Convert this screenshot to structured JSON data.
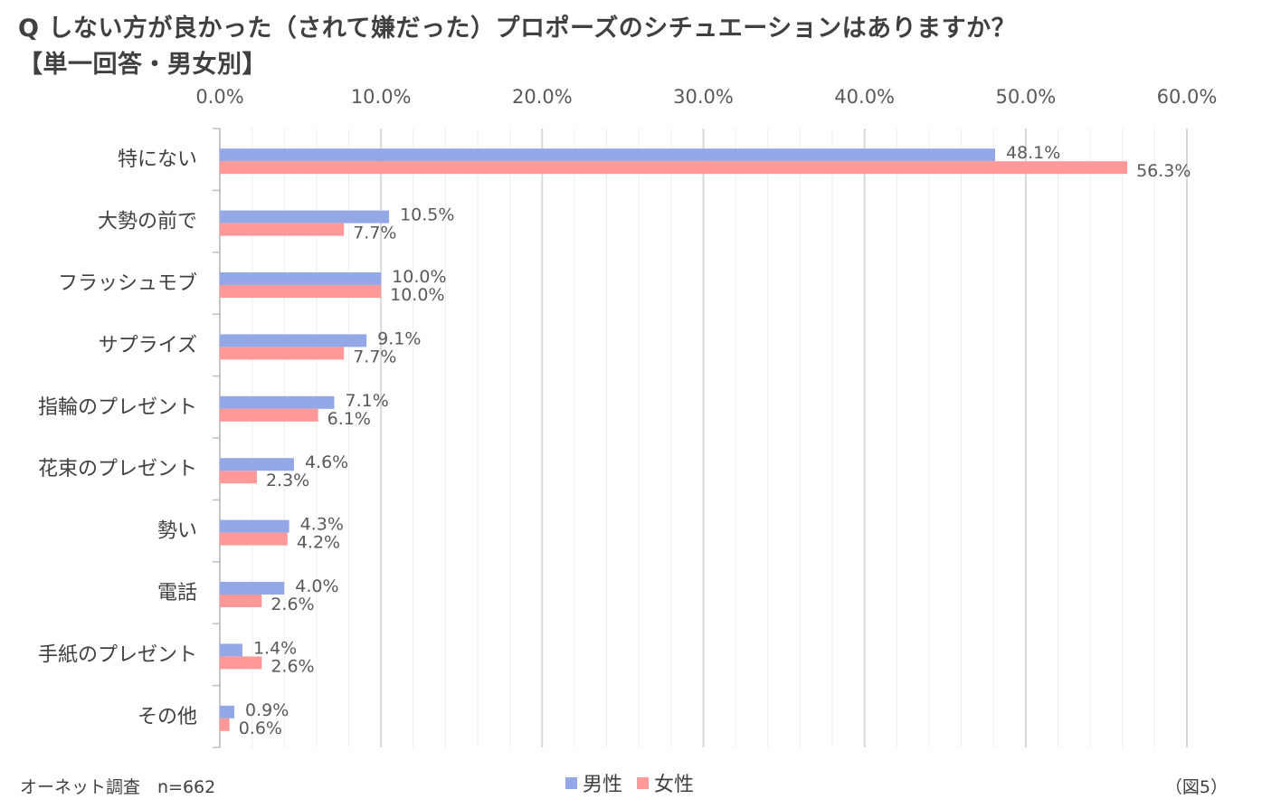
{
  "title_line1": "Q しない方が良かった（されて嫌だった）プロポーズのシチュエーションはありますか？",
  "title_line2": "【単一回答・男女別】",
  "footer_source": "オーネット調査　n=662",
  "footer_fig": "（図5）",
  "colors": {
    "male": "#94a7e6",
    "female": "#ff9999",
    "grid": "#d9d9d9",
    "axis": "#bfbfbf"
  },
  "chart_data": {
    "type": "bar",
    "orientation": "horizontal",
    "categories": [
      "特にない",
      "大勢の前で",
      "フラッシュモブ",
      "サプライズ",
      "指輪のプレゼント",
      "花束のプレゼント",
      "勢い",
      "電話",
      "手紙のプレゼント",
      "その他"
    ],
    "series": [
      {
        "name": "男性",
        "values": [
          48.1,
          10.5,
          10.0,
          9.1,
          7.1,
          4.6,
          4.3,
          4.0,
          1.4,
          0.9
        ],
        "labels": [
          "48.1%",
          "10.5%",
          "10.0%",
          "9.1%",
          "7.1%",
          "4.6%",
          "4.3%",
          "4.0%",
          "1.4%",
          "0.9%"
        ]
      },
      {
        "name": "女性",
        "values": [
          56.3,
          7.7,
          10.0,
          7.7,
          6.1,
          2.3,
          4.2,
          2.6,
          2.6,
          0.6
        ],
        "labels": [
          "56.3%",
          "7.7%",
          "10.0%",
          "7.7%",
          "6.1%",
          "2.3%",
          "4.2%",
          "2.6%",
          "2.6%",
          "0.6%"
        ]
      }
    ],
    "xlim": [
      0,
      60
    ],
    "xticks": [
      "0.0%",
      "10.0%",
      "20.0%",
      "30.0%",
      "40.0%",
      "50.0%",
      "60.0%"
    ],
    "axis_position": "top",
    "grid": true,
    "legend": "bottom"
  }
}
